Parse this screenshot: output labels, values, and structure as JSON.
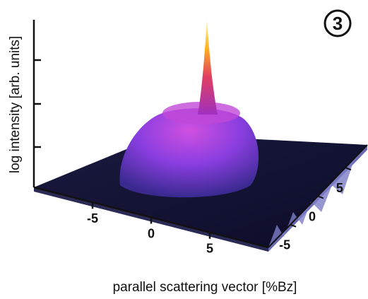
{
  "chart_data": {
    "type": "surface",
    "panel_label": "3",
    "xlabel": "parallel scattering vector [%Bz]",
    "zlabel": "log intensity [arb. units]",
    "xlim": [
      -10,
      10
    ],
    "xticks": [
      -5,
      0,
      5
    ],
    "ylim": [
      -9,
      9
    ],
    "yticks": [
      -5,
      0,
      5
    ]
  }
}
